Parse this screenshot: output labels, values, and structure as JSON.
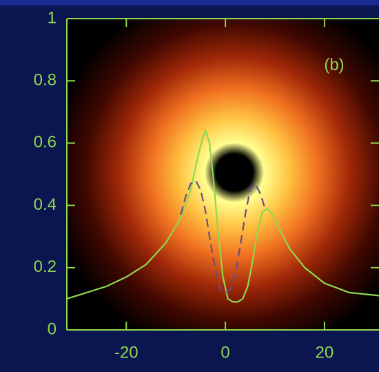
{
  "chart_data": {
    "type": "line",
    "annotation": "(b)",
    "xlim": [
      -32,
      31
    ],
    "ylim": [
      0,
      1
    ],
    "xticks": [
      -20,
      0,
      20
    ],
    "yticks": [
      0,
      0.2,
      0.4,
      0.6,
      0.8,
      1
    ],
    "series": [
      {
        "color": "#8fd850",
        "dash": false,
        "x": [
          -32,
          -28,
          -24,
          -20,
          -16,
          -12,
          -9,
          -7,
          -5.5,
          -4.5,
          -4,
          -3.2,
          -2.5,
          -1.5,
          -0.5,
          0.5,
          1.5,
          2.5,
          3.5,
          4.5,
          5.5,
          6.5,
          7.5,
          8.5,
          9.5,
          11,
          13,
          16,
          20,
          25,
          31
        ],
        "values": [
          0.1,
          0.12,
          0.14,
          0.17,
          0.21,
          0.28,
          0.36,
          0.45,
          0.56,
          0.62,
          0.64,
          0.6,
          0.5,
          0.32,
          0.17,
          0.1,
          0.09,
          0.09,
          0.1,
          0.14,
          0.22,
          0.32,
          0.38,
          0.39,
          0.37,
          0.32,
          0.26,
          0.2,
          0.15,
          0.12,
          0.11
        ]
      },
      {
        "color": "#6a4a8a",
        "dash": true,
        "x": [
          -9,
          -8,
          -7,
          -6,
          -5,
          -4,
          -3,
          -2,
          -1,
          0,
          1,
          2,
          3,
          4,
          5,
          6,
          7,
          8
        ],
        "values": [
          0.37,
          0.43,
          0.47,
          0.48,
          0.45,
          0.38,
          0.28,
          0.19,
          0.13,
          0.12,
          0.13,
          0.18,
          0.27,
          0.37,
          0.45,
          0.47,
          0.44,
          0.39
        ]
      }
    ]
  }
}
